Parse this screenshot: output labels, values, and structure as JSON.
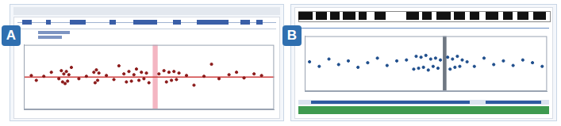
{
  "chart_data": [
    {
      "type": "scatter",
      "title": "A",
      "color": "#8b1a1a",
      "baseline": 0,
      "baseline_color": "#d04040",
      "highlight": [
        51.5,
        53.5
      ],
      "highlight_color": "#f4b6c2",
      "x": [
        3,
        5,
        8,
        11,
        14,
        15,
        15.5,
        16,
        16.5,
        17,
        17.5,
        18,
        19,
        22,
        25,
        28,
        28.5,
        29,
        29.5,
        30,
        33,
        36,
        38,
        40,
        41,
        42,
        43,
        44,
        45,
        46,
        47,
        48,
        49,
        50,
        54,
        56,
        57,
        58,
        59,
        60,
        61,
        62,
        65,
        68,
        72,
        75,
        78,
        82,
        85,
        88,
        92,
        95
      ],
      "values": [
        0.1,
        -0.2,
        0.05,
        0.3,
        -0.1,
        0.4,
        -0.3,
        0.2,
        -0.4,
        0.35,
        -0.25,
        0.15,
        0.6,
        -0.1,
        0.05,
        0.3,
        -0.35,
        0.45,
        -0.2,
        0.25,
        0.1,
        -0.15,
        0.7,
        0.2,
        -0.3,
        0.35,
        -0.25,
        0.15,
        0.5,
        -0.2,
        0.3,
        -0.1,
        0.25,
        -0.35,
        0.2,
        0.4,
        -0.3,
        0.3,
        -0.2,
        0.35,
        -0.15,
        0.25,
        0.1,
        -0.5,
        0.05,
        0.8,
        -0.1,
        0.15,
        0.3,
        -0.05,
        0.2,
        0.1
      ],
      "xlim": [
        0,
        100
      ],
      "ylim": [
        -2,
        2
      ],
      "grid": false,
      "tick_labels": false
    },
    {
      "type": "scatter",
      "title": "B",
      "color": "#1f4e8c",
      "highlight": [
        57,
        58.5
      ],
      "highlight_color": "#6f7782",
      "x": [
        2,
        6,
        10,
        14,
        18,
        22,
        26,
        30,
        34,
        38,
        42,
        45,
        46,
        47,
        48,
        49,
        50,
        51,
        52,
        53,
        54,
        55,
        56,
        59,
        60,
        61,
        62,
        63,
        64,
        65,
        67,
        70,
        74,
        78,
        82,
        86,
        90,
        94,
        98
      ],
      "values": [
        0.2,
        -0.3,
        0.5,
        -0.1,
        0.3,
        -0.4,
        0.1,
        0.6,
        -0.2,
        0.3,
        0.4,
        -0.6,
        0.8,
        -0.5,
        0.7,
        -0.4,
        0.9,
        -0.7,
        0.5,
        -0.3,
        0.6,
        -0.5,
        0.4,
        0.7,
        -0.6,
        0.5,
        -0.4,
        0.8,
        -0.3,
        0.4,
        0.2,
        -0.3,
        0.6,
        -0.1,
        0.3,
        -0.2,
        0.4,
        0.1,
        -0.3
      ],
      "xlim": [
        0,
        100
      ],
      "ylim": [
        -3,
        3
      ],
      "grid": false,
      "tick_labels": false
    }
  ]
}
